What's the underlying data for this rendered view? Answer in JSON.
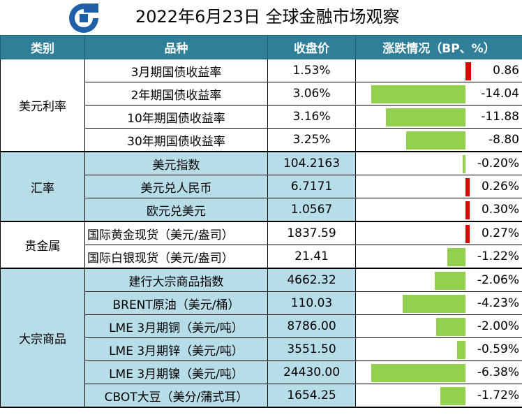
{
  "title": "2022年6月23日 全球金融市场观察",
  "logo": "ccb-logo-icon",
  "colors": {
    "header_bg": "#2f7f99",
    "group_bg": "#b7dde8",
    "positive_bar": "#e00000",
    "negative_bar": "#92d050"
  },
  "columns": [
    "类别",
    "品种",
    "收盘价",
    "涨跌情况（BP、%）"
  ],
  "groups": [
    {
      "category": "美元利率",
      "shaded": false,
      "rows": [
        {
          "name": "3月期国债收益率",
          "close": "1.53%",
          "change": "0.86",
          "value": 0.86,
          "max": 14.04
        },
        {
          "name": "2年期国债收益率",
          "close": "3.06%",
          "change": "-14.04",
          "value": -14.04,
          "max": 14.04
        },
        {
          "name": "10年期国债收益率",
          "close": "3.16%",
          "change": "-11.88",
          "value": -11.88,
          "max": 14.04
        },
        {
          "name": "30年期国债收益率",
          "close": "3.25%",
          "change": "-8.80",
          "value": -8.8,
          "max": 14.04
        }
      ]
    },
    {
      "category": "汇率",
      "shaded": true,
      "rows": [
        {
          "name": "美元指数",
          "close": "104.2163",
          "change": "-0.20%",
          "value": -0.2,
          "max": 6.38
        },
        {
          "name": "美元兑人民币",
          "close": "6.7171",
          "change": "0.26%",
          "value": 0.26,
          "max": 6.38
        },
        {
          "name": "欧元兑美元",
          "close": "1.0567",
          "change": "0.30%",
          "value": 0.3,
          "max": 6.38
        }
      ]
    },
    {
      "category": "贵金属",
      "shaded": false,
      "rows": [
        {
          "name": "国际黄金现货（美元/盎司）",
          "close": "1837.59",
          "change": "0.27%",
          "value": 0.27,
          "max": 6.38,
          "left": true
        },
        {
          "name": "国际白银现货（美元/盎司）",
          "close": "21.41",
          "change": "-1.22%",
          "value": -1.22,
          "max": 6.38,
          "left": true
        }
      ]
    },
    {
      "category": "大宗商品",
      "shaded": true,
      "rows": [
        {
          "name": "建行大宗商品指数",
          "close": "4662.32",
          "change": "-2.06%",
          "value": -2.06,
          "max": 6.38
        },
        {
          "name": "BRENT原油（美元/桶）",
          "close": "110.03",
          "change": "-4.23%",
          "value": -4.23,
          "max": 6.38
        },
        {
          "name": "LME 3月期铜（美元/吨）",
          "close": "8786.00",
          "change": "-2.00%",
          "value": -2.0,
          "max": 6.38
        },
        {
          "name": "LME 3月期锌（美元/吨）",
          "close": "3551.50",
          "change": "-0.59%",
          "value": -0.59,
          "max": 6.38
        },
        {
          "name": "LME 3月期镍（美元/吨）",
          "close": "24430.00",
          "change": "-6.38%",
          "value": -6.38,
          "max": 6.38
        },
        {
          "name": "CBOT大豆（美分/蒲式耳）",
          "close": "1654.25",
          "change": "-1.72%",
          "value": -1.72,
          "max": 6.38
        }
      ]
    }
  ]
}
